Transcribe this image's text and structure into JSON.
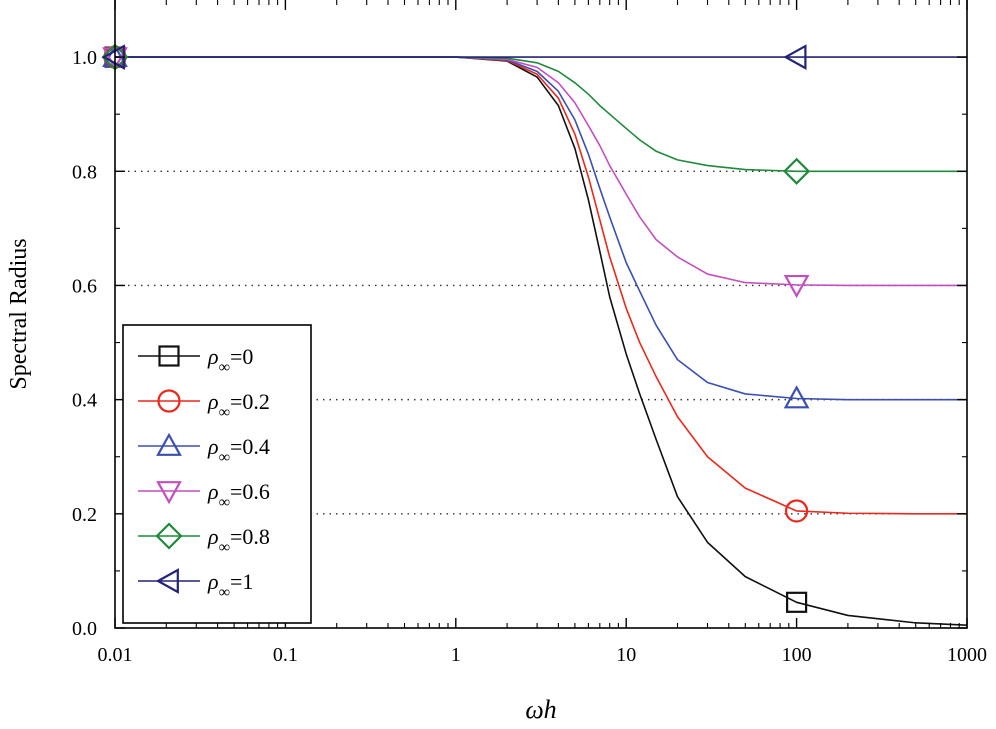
{
  "chart_data": {
    "type": "line",
    "xscale": "log",
    "xlabel": "ωh",
    "ylabel": "Spectral Radius",
    "xlim": [
      0.01,
      1000
    ],
    "ylim": [
      0.0,
      1.1
    ],
    "xticks": [
      {
        "value": 0.01,
        "label": "0.01"
      },
      {
        "value": 0.1,
        "label": "0.1"
      },
      {
        "value": 1,
        "label": "1"
      },
      {
        "value": 10,
        "label": "10"
      },
      {
        "value": 100,
        "label": "100"
      },
      {
        "value": 1000,
        "label": "1000"
      }
    ],
    "yticks": [
      {
        "value": 0.0,
        "label": "0.0"
      },
      {
        "value": 0.2,
        "label": "0.2"
      },
      {
        "value": 0.4,
        "label": "0.4"
      },
      {
        "value": 0.6,
        "label": "0.6"
      },
      {
        "value": 0.8,
        "label": "0.8"
      },
      {
        "value": 1.0,
        "label": "1.0"
      }
    ],
    "reference_lines": [
      0.2,
      0.4,
      0.6,
      0.8
    ],
    "legend_position": "bottom-left",
    "x": [
      0.01,
      1,
      2,
      3,
      4,
      5,
      6,
      7,
      8,
      10,
      12,
      15,
      20,
      30,
      50,
      100,
      200,
      500,
      1000
    ],
    "series": [
      {
        "name": "ρ∞=0",
        "rho": "0",
        "color": "#111111",
        "marker": "square",
        "values": [
          1.0,
          1.0,
          0.993,
          0.965,
          0.915,
          0.84,
          0.75,
          0.66,
          0.58,
          0.48,
          0.41,
          0.33,
          0.23,
          0.15,
          0.09,
          0.045,
          0.022,
          0.009,
          0.005
        ]
      },
      {
        "name": "ρ∞=0.2",
        "rho": "0.2",
        "color": "#e8291c",
        "marker": "circle",
        "values": [
          1.0,
          1.0,
          0.994,
          0.97,
          0.928,
          0.865,
          0.79,
          0.715,
          0.65,
          0.56,
          0.5,
          0.44,
          0.37,
          0.3,
          0.245,
          0.205,
          0.201,
          0.2,
          0.2
        ]
      },
      {
        "name": "ρ∞=0.4",
        "rho": "0.4",
        "color": "#3b4fb0",
        "marker": "triangle-up",
        "values": [
          1.0,
          1.0,
          0.995,
          0.975,
          0.94,
          0.89,
          0.83,
          0.77,
          0.72,
          0.64,
          0.59,
          0.53,
          0.47,
          0.43,
          0.41,
          0.402,
          0.4,
          0.4,
          0.4
        ]
      },
      {
        "name": "ρ∞=0.6",
        "rho": "0.6",
        "color": "#c24fc0",
        "marker": "triangle-down",
        "values": [
          1.0,
          1.0,
          0.996,
          0.982,
          0.955,
          0.92,
          0.88,
          0.845,
          0.81,
          0.76,
          0.72,
          0.68,
          0.65,
          0.62,
          0.605,
          0.601,
          0.6,
          0.6,
          0.6
        ]
      },
      {
        "name": "ρ∞=0.8",
        "rho": "0.8",
        "color": "#1f8a3b",
        "marker": "diamond",
        "values": [
          1.0,
          1.0,
          0.998,
          0.99,
          0.975,
          0.955,
          0.935,
          0.915,
          0.9,
          0.875,
          0.855,
          0.835,
          0.82,
          0.81,
          0.803,
          0.8,
          0.8,
          0.8,
          0.8
        ]
      },
      {
        "name": "ρ∞=1",
        "rho": "1",
        "color": "#23237a",
        "marker": "triangle-left",
        "values": [
          1.0,
          1.0,
          1.0,
          1.0,
          1.0,
          1.0,
          1.0,
          1.0,
          1.0,
          1.0,
          1.0,
          1.0,
          1.0,
          1.0,
          1.0,
          1.0,
          1.0,
          1.0,
          1.0
        ]
      }
    ],
    "marker_x": [
      0.01,
      100
    ]
  }
}
